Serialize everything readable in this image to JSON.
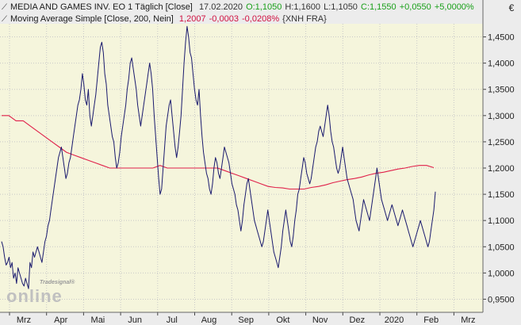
{
  "legend": {
    "line1": {
      "name": "MEDIA AND GAMES INV. EO 1 Täglich [Close]",
      "date": "17.02.2020",
      "open": "O:1,1050",
      "high": "H:1,1600",
      "low": "L:1,1050",
      "close": "C:1,1550",
      "change": "+0,0550",
      "change_pct": "+5,0000%"
    },
    "line2": {
      "name": "Moving Average Simple [Close, 200, Nein]",
      "value": "1,2007",
      "change": "-0,0003",
      "change_pct": "-0,0208%",
      "exchange": "{XNH FRA}"
    }
  },
  "watermark": {
    "small": "Tradesignal®",
    "big": "online"
  },
  "colors": {
    "plot_bg": "#f5f5dc",
    "price_line": "#1a1a6e",
    "ma_line": "#e0204a",
    "positive": "#1aa01a",
    "ma_value": "#d01040"
  },
  "chart_data": {
    "type": "line",
    "currency": "€",
    "x_ticks": [
      "Mrz",
      "Apr",
      "Mai",
      "Jun",
      "Jul",
      "Aug",
      "Sep",
      "Okt",
      "Nov",
      "Dez",
      "2020",
      "Feb",
      "Mrz"
    ],
    "y_ticks": [
      "1,4500",
      "1,4000",
      "1,3500",
      "1,3000",
      "1,2500",
      "1,2000",
      "1,1500",
      "1,1000",
      "1,0500",
      "1,0000",
      "0,9500"
    ],
    "ylim": [
      0.925,
      1.475
    ],
    "grid": true,
    "series": [
      {
        "name": "MEDIA AND GAMES INV. EO 1 Täglich [Close]",
        "values": [
          1.06,
          1.05,
          1.03,
          1.015,
          1.02,
          1.03,
          1.01,
          1.02,
          0.99,
          1.0,
          0.98,
          1.01,
          1.0,
          0.99,
          0.98,
          0.975,
          0.99,
          0.98,
          0.97,
          1.02,
          1.01,
          1.04,
          1.03,
          1.04,
          1.05,
          1.04,
          1.03,
          1.02,
          1.04,
          1.06,
          1.07,
          1.09,
          1.1,
          1.12,
          1.14,
          1.16,
          1.18,
          1.2,
          1.22,
          1.23,
          1.24,
          1.22,
          1.2,
          1.18,
          1.19,
          1.21,
          1.22,
          1.24,
          1.26,
          1.28,
          1.3,
          1.32,
          1.33,
          1.35,
          1.38,
          1.36,
          1.33,
          1.32,
          1.35,
          1.3,
          1.28,
          1.3,
          1.32,
          1.34,
          1.37,
          1.4,
          1.43,
          1.44,
          1.42,
          1.38,
          1.36,
          1.32,
          1.3,
          1.28,
          1.26,
          1.25,
          1.22,
          1.2,
          1.21,
          1.23,
          1.26,
          1.28,
          1.3,
          1.32,
          1.35,
          1.37,
          1.4,
          1.41,
          1.39,
          1.37,
          1.35,
          1.32,
          1.3,
          1.28,
          1.3,
          1.32,
          1.34,
          1.36,
          1.38,
          1.4,
          1.38,
          1.35,
          1.3,
          1.26,
          1.22,
          1.18,
          1.15,
          1.16,
          1.2,
          1.24,
          1.28,
          1.3,
          1.32,
          1.33,
          1.3,
          1.27,
          1.24,
          1.22,
          1.24,
          1.27,
          1.3,
          1.35,
          1.4,
          1.44,
          1.47,
          1.45,
          1.42,
          1.41,
          1.38,
          1.35,
          1.33,
          1.32,
          1.35,
          1.3,
          1.26,
          1.23,
          1.21,
          1.19,
          1.18,
          1.16,
          1.15,
          1.17,
          1.2,
          1.22,
          1.21,
          1.19,
          1.18,
          1.2,
          1.22,
          1.24,
          1.23,
          1.22,
          1.21,
          1.19,
          1.17,
          1.16,
          1.15,
          1.13,
          1.12,
          1.1,
          1.08,
          1.1,
          1.13,
          1.15,
          1.17,
          1.18,
          1.16,
          1.14,
          1.12,
          1.1,
          1.09,
          1.08,
          1.07,
          1.06,
          1.05,
          1.06,
          1.08,
          1.1,
          1.12,
          1.1,
          1.08,
          1.06,
          1.04,
          1.03,
          1.02,
          1.01,
          1.03,
          1.05,
          1.08,
          1.1,
          1.12,
          1.1,
          1.08,
          1.06,
          1.05,
          1.07,
          1.1,
          1.12,
          1.15,
          1.16,
          1.18,
          1.2,
          1.22,
          1.21,
          1.19,
          1.18,
          1.17,
          1.18,
          1.2,
          1.22,
          1.24,
          1.25,
          1.27,
          1.28,
          1.27,
          1.26,
          1.28,
          1.3,
          1.32,
          1.3,
          1.27,
          1.25,
          1.24,
          1.22,
          1.2,
          1.19,
          1.2,
          1.22,
          1.24,
          1.22,
          1.2,
          1.18,
          1.17,
          1.16,
          1.15,
          1.14,
          1.12,
          1.1,
          1.09,
          1.08,
          1.1,
          1.12,
          1.14,
          1.13,
          1.12,
          1.11,
          1.1,
          1.12,
          1.14,
          1.16,
          1.18,
          1.2,
          1.18,
          1.16,
          1.14,
          1.13,
          1.12,
          1.11,
          1.1,
          1.11,
          1.12,
          1.13,
          1.12,
          1.11,
          1.1,
          1.09,
          1.1,
          1.11,
          1.12,
          1.11,
          1.1,
          1.09,
          1.08,
          1.07,
          1.06,
          1.05,
          1.06,
          1.07,
          1.08,
          1.09,
          1.1,
          1.09,
          1.08,
          1.07,
          1.06,
          1.05,
          1.06,
          1.08,
          1.1,
          1.12,
          1.155
        ]
      },
      {
        "name": "Moving Average Simple [Close, 200, Nein]",
        "values": [
          1.3,
          1.3,
          1.29,
          1.29,
          1.28,
          1.27,
          1.26,
          1.25,
          1.24,
          1.23,
          1.225,
          1.22,
          1.215,
          1.21,
          1.205,
          1.2,
          1.2,
          1.2,
          1.2,
          1.2,
          1.2,
          1.2,
          1.205,
          1.2,
          1.2,
          1.2,
          1.2,
          1.2,
          1.2,
          1.2,
          1.2,
          1.195,
          1.19,
          1.185,
          1.18,
          1.175,
          1.17,
          1.165,
          1.163,
          1.162,
          1.16,
          1.16,
          1.16,
          1.163,
          1.165,
          1.168,
          1.172,
          1.175,
          1.178,
          1.18,
          1.183,
          1.187,
          1.19,
          1.192,
          1.195,
          1.198,
          1.2,
          1.203,
          1.205,
          1.205,
          1.2007
        ]
      }
    ]
  }
}
